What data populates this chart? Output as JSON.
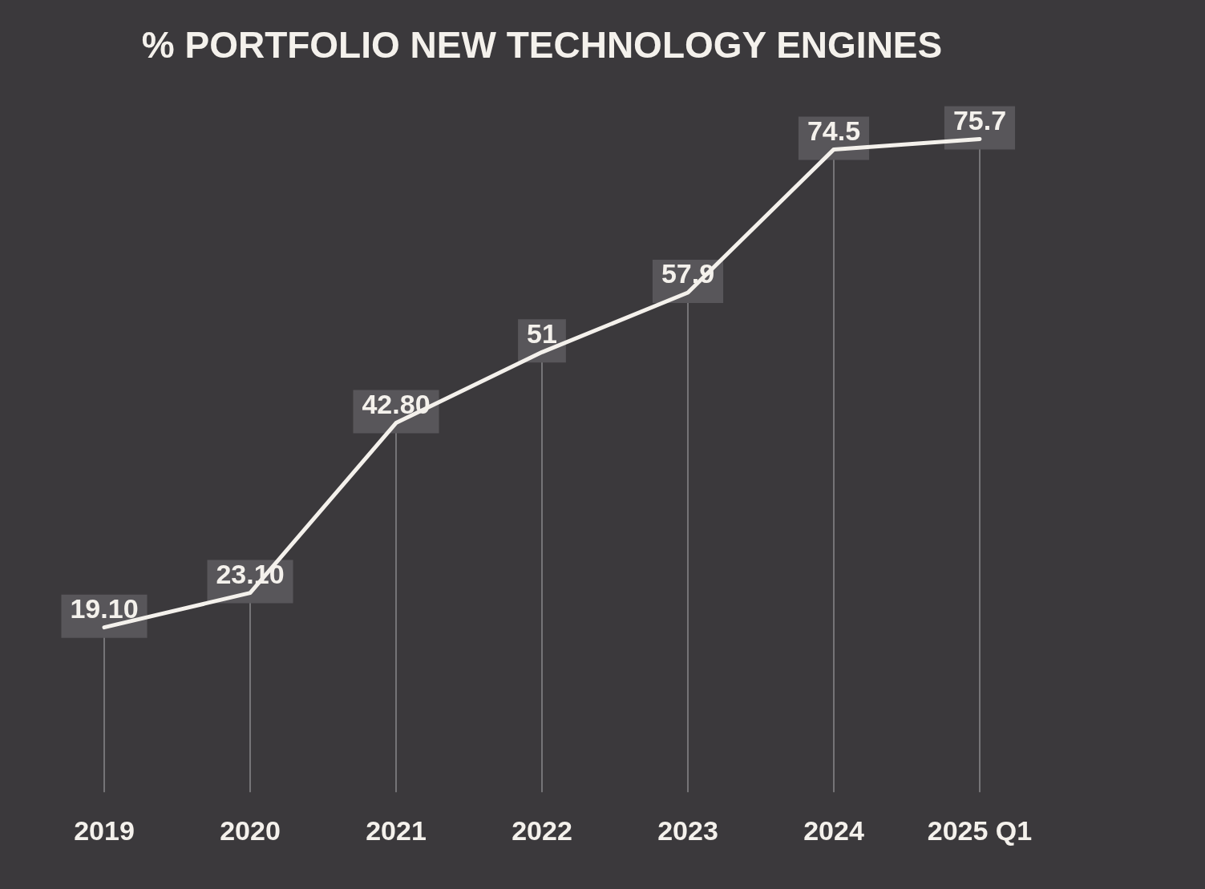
{
  "chart_data": {
    "type": "line",
    "title": "% PORTFOLIO NEW TECHNOLOGY ENGINES",
    "categories": [
      "2019",
      "2020",
      "2021",
      "2022",
      "2023",
      "2024",
      "2025 Q1"
    ],
    "values": [
      19.1,
      23.1,
      42.8,
      51,
      57.9,
      74.5,
      75.7
    ],
    "value_labels": [
      "19.10",
      "23.10",
      "42.80",
      "51",
      "57.9",
      "74.5",
      "75.7"
    ],
    "color": "#f4f1ec",
    "grid": "x",
    "tick_labels": "x",
    "marker": "none",
    "line_style": "solid"
  }
}
